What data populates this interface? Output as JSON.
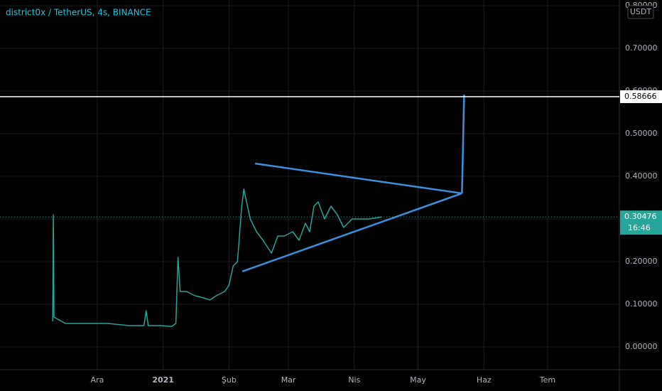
{
  "chart_data": {
    "type": "line",
    "title": "district0x / TetherUS, 4s, BINANCE",
    "currency": "USDT",
    "series": [
      {
        "color": "#26a69a",
        "x": [
          -21,
          -20.7,
          -20.4,
          -15,
          -5,
          5,
          15,
          22,
          23,
          24,
          30,
          35,
          37,
          38,
          39,
          42,
          46,
          50,
          53,
          56,
          60,
          62,
          64,
          66,
          68,
          69,
          72,
          75,
          78,
          82,
          85,
          88,
          92,
          95,
          98,
          100,
          102,
          104,
          107,
          110,
          113,
          116,
          120,
          124,
          128,
          134
        ],
        "values": [
          0.06,
          0.31,
          0.07,
          0.055,
          0.055,
          0.055,
          0.05,
          0.05,
          0.085,
          0.05,
          0.05,
          0.048,
          0.055,
          0.21,
          0.13,
          0.13,
          0.12,
          0.115,
          0.11,
          0.12,
          0.13,
          0.145,
          0.19,
          0.2,
          0.33,
          0.37,
          0.3,
          0.27,
          0.25,
          0.22,
          0.26,
          0.26,
          0.27,
          0.25,
          0.29,
          0.27,
          0.33,
          0.34,
          0.3,
          0.33,
          0.31,
          0.28,
          0.3,
          0.3,
          0.3,
          0.30476
        ]
      }
    ],
    "last_price": 0.30476,
    "countdown": "16:46",
    "horizontal_line": 0.58666,
    "trendlines": [
      {
        "color": "#3d8fe0",
        "x": [
          74.3,
          171.7
        ],
        "values": [
          0.43,
          0.36
        ]
      },
      {
        "color": "#3d8fe0",
        "x": [
          68.3,
          171.7
        ],
        "values": [
          0.177,
          0.36
        ]
      },
      {
        "color": "#3d8fe0",
        "x": [
          171.7,
          172.7
        ],
        "values": [
          0.36,
          0.5917
        ]
      }
    ],
    "xlim": [
      -45.8,
      245.8
    ],
    "xticks": [
      {
        "value": 0,
        "label": "Ara"
      },
      {
        "value": 31,
        "label": "2021"
      },
      {
        "value": 62,
        "label": "Şub"
      },
      {
        "value": 90,
        "label": "Mar"
      },
      {
        "value": 121,
        "label": "Nis"
      },
      {
        "value": 151,
        "label": "May"
      },
      {
        "value": 182,
        "label": "Haz"
      },
      {
        "value": 212,
        "label": "Tem"
      }
    ],
    "ylim": [
      -0.0533,
      0.8133
    ],
    "yticks": [
      {
        "value": 0,
        "label": "0.00000"
      },
      {
        "value": 0.1,
        "label": "0.10000"
      },
      {
        "value": 0.2,
        "label": "0.20000"
      },
      {
        "value": 0.3,
        "label": "0.30000"
      },
      {
        "value": 0.4,
        "label": "0.40000"
      },
      {
        "value": 0.5,
        "label": "0.50000"
      },
      {
        "value": 0.6,
        "label": "0.60000"
      },
      {
        "value": 0.7,
        "label": "0.70000"
      },
      {
        "value": 0.8,
        "label": "0.80000"
      }
    ],
    "grid": true
  }
}
